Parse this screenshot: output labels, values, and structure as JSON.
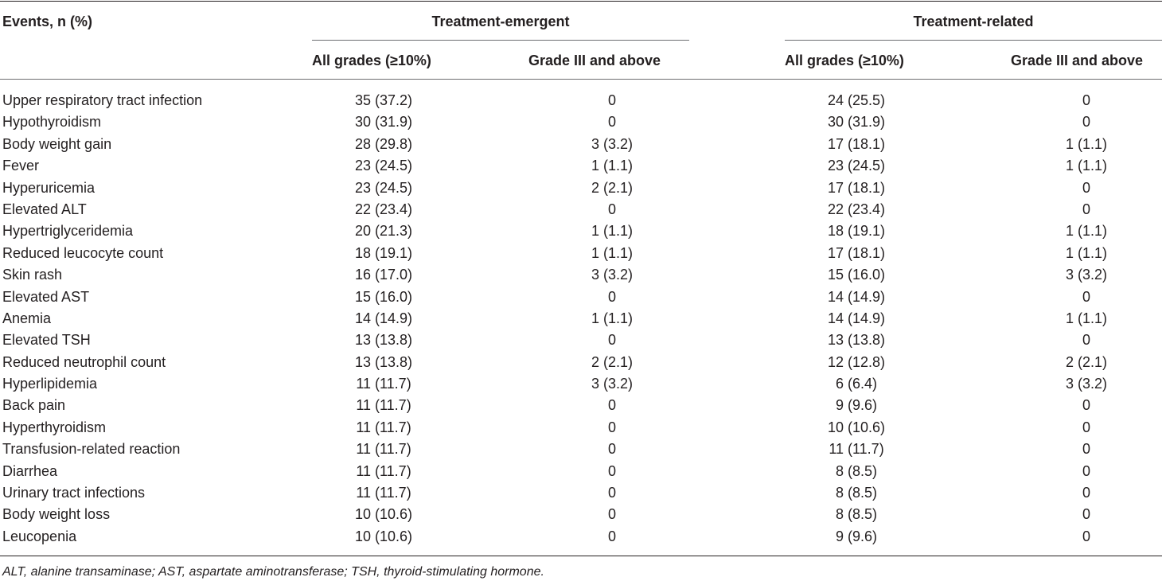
{
  "header": {
    "events_label": "Events, n (%)",
    "group_emergent": "Treatment-emergent",
    "group_related": "Treatment-related",
    "sub_all": "All grades (≥10%)",
    "sub_g3": "Grade III and above"
  },
  "rows": [
    {
      "event": "Upper respiratory tract infection",
      "te_all": "35 (37.2)",
      "te_g3": "0",
      "tr_all": "24 (25.5)",
      "tr_g3": "0"
    },
    {
      "event": "Hypothyroidism",
      "te_all": "30 (31.9)",
      "te_g3": "0",
      "tr_all": "30 (31.9)",
      "tr_g3": "0"
    },
    {
      "event": "Body weight gain",
      "te_all": "28 (29.8)",
      "te_g3": "3 (3.2)",
      "tr_all": "17 (18.1)",
      "tr_g3": "1 (1.1)"
    },
    {
      "event": "Fever",
      "te_all": "23 (24.5)",
      "te_g3": "1 (1.1)",
      "tr_all": "23 (24.5)",
      "tr_g3": "1 (1.1)"
    },
    {
      "event": "Hyperuricemia",
      "te_all": "23 (24.5)",
      "te_g3": "2 (2.1)",
      "tr_all": "17 (18.1)",
      "tr_g3": "0"
    },
    {
      "event": "Elevated ALT",
      "te_all": "22 (23.4)",
      "te_g3": "0",
      "tr_all": "22 (23.4)",
      "tr_g3": "0"
    },
    {
      "event": "Hypertriglyceridemia",
      "te_all": "20 (21.3)",
      "te_g3": "1 (1.1)",
      "tr_all": "18 (19.1)",
      "tr_g3": "1 (1.1)"
    },
    {
      "event": "Reduced leucocyte count",
      "te_all": "18 (19.1)",
      "te_g3": "1 (1.1)",
      "tr_all": "17 (18.1)",
      "tr_g3": "1 (1.1)"
    },
    {
      "event": "Skin rash",
      "te_all": "16 (17.0)",
      "te_g3": "3 (3.2)",
      "tr_all": "15 (16.0)",
      "tr_g3": "3 (3.2)"
    },
    {
      "event": "Elevated AST",
      "te_all": "15 (16.0)",
      "te_g3": "0",
      "tr_all": "14 (14.9)",
      "tr_g3": "0"
    },
    {
      "event": "Anemia",
      "te_all": "14 (14.9)",
      "te_g3": "1 (1.1)",
      "tr_all": "14 (14.9)",
      "tr_g3": "1 (1.1)"
    },
    {
      "event": "Elevated TSH",
      "te_all": "13 (13.8)",
      "te_g3": "0",
      "tr_all": "13 (13.8)",
      "tr_g3": "0"
    },
    {
      "event": "Reduced neutrophil count",
      "te_all": "13 (13.8)",
      "te_g3": "2 (2.1)",
      "tr_all": "12 (12.8)",
      "tr_g3": "2 (2.1)"
    },
    {
      "event": "Hyperlipidemia",
      "te_all": "11 (11.7)",
      "te_g3": "3 (3.2)",
      "tr_all": "6 (6.4)",
      "tr_g3": "3 (3.2)"
    },
    {
      "event": "Back pain",
      "te_all": "11 (11.7)",
      "te_g3": "0",
      "tr_all": "9 (9.6)",
      "tr_g3": "0"
    },
    {
      "event": "Hyperthyroidism",
      "te_all": "11 (11.7)",
      "te_g3": "0",
      "tr_all": "10 (10.6)",
      "tr_g3": "0"
    },
    {
      "event": "Transfusion-related reaction",
      "te_all": "11 (11.7)",
      "te_g3": "0",
      "tr_all": "11 (11.7)",
      "tr_g3": "0"
    },
    {
      "event": "Diarrhea",
      "te_all": "11 (11.7)",
      "te_g3": "0",
      "tr_all": "8 (8.5)",
      "tr_g3": "0"
    },
    {
      "event": "Urinary tract infections",
      "te_all": "11 (11.7)",
      "te_g3": "0",
      "tr_all": "8 (8.5)",
      "tr_g3": "0"
    },
    {
      "event": "Body weight loss",
      "te_all": "10 (10.6)",
      "te_g3": "0",
      "tr_all": "8 (8.5)",
      "tr_g3": "0"
    },
    {
      "event": "Leucopenia",
      "te_all": "10 (10.6)",
      "te_g3": "0",
      "tr_all": "9 (9.6)",
      "tr_g3": "0"
    }
  ],
  "footnote": "ALT, alanine transaminase; AST, aspartate aminotransferase; TSH, thyroid-stimulating hormone."
}
